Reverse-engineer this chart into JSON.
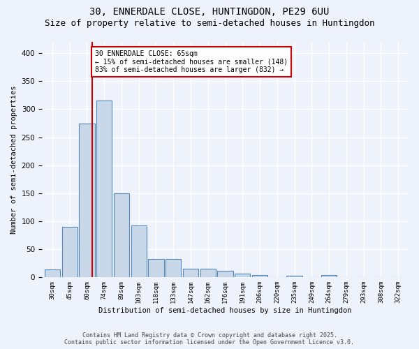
{
  "title1": "30, ENNERDALE CLOSE, HUNTINGDON, PE29 6UU",
  "title2": "Size of property relative to semi-detached houses in Huntingdon",
  "xlabel": "Distribution of semi-detached houses by size in Huntingdon",
  "ylabel": "Number of semi-detached properties",
  "bar_labels": [
    "30sqm",
    "45sqm",
    "60sqm",
    "74sqm",
    "89sqm",
    "103sqm",
    "118sqm",
    "133sqm",
    "147sqm",
    "162sqm",
    "176sqm",
    "191sqm",
    "206sqm",
    "220sqm",
    "235sqm",
    "249sqm",
    "264sqm",
    "279sqm",
    "293sqm",
    "308sqm",
    "322sqm"
  ],
  "bar_values": [
    14,
    90,
    274,
    315,
    150,
    93,
    33,
    33,
    15,
    15,
    11,
    7,
    4,
    0,
    3,
    0,
    4,
    0,
    0,
    0,
    0
  ],
  "bar_color": "#c8d8e8",
  "bar_edge_color": "#5588bb",
  "red_line_x": 2.3,
  "annotation_text": "30 ENNERDALE CLOSE: 65sqm\n← 15% of semi-detached houses are smaller (148)\n83% of semi-detached houses are larger (832) →",
  "annotation_box_color": "#ffffff",
  "annotation_box_edge": "#cc0000",
  "red_line_color": "#cc0000",
  "footer1": "Contains HM Land Registry data © Crown copyright and database right 2025.",
  "footer2": "Contains public sector information licensed under the Open Government Licence v3.0.",
  "bg_color": "#eef2fa",
  "grid_color": "#ffffff",
  "ylim": [
    0,
    420
  ],
  "title1_fontsize": 10,
  "title2_fontsize": 9
}
